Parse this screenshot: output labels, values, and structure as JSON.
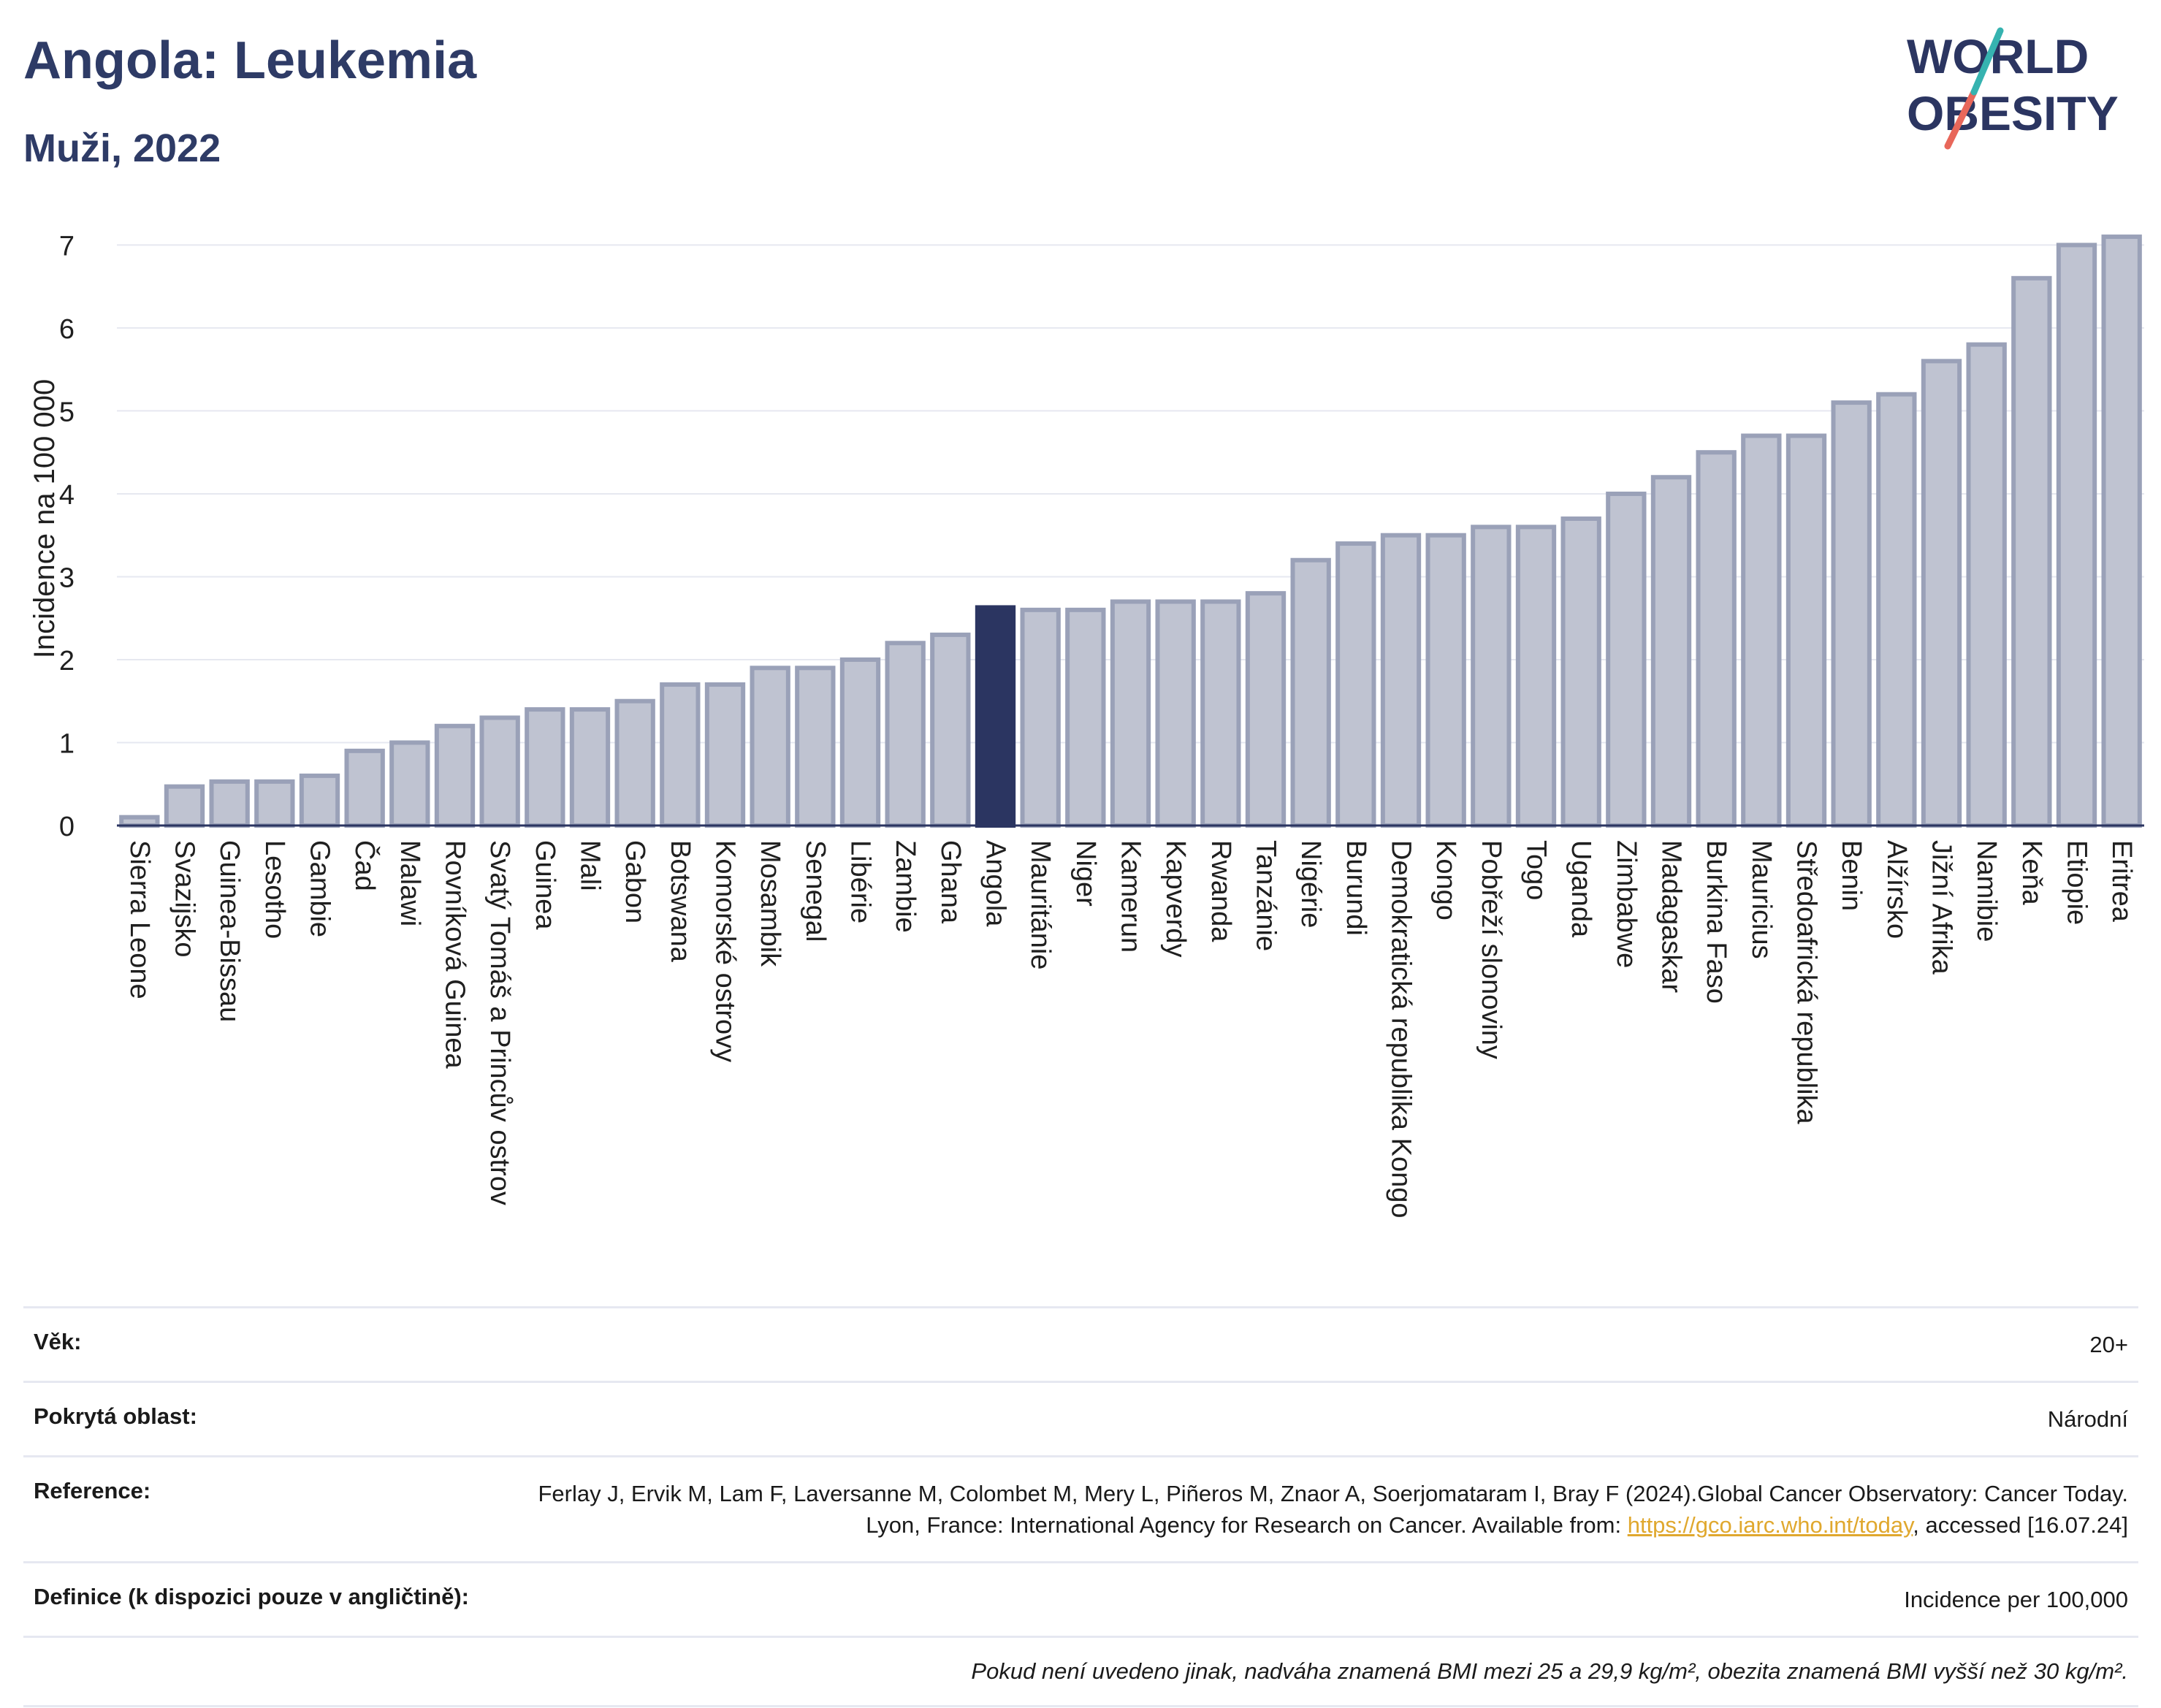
{
  "header": {
    "title": "Angola: Leukemia",
    "subtitle": "Muži, 2022"
  },
  "logo": {
    "line1": "WORLD",
    "line2": "OBESITY",
    "accent_colors": [
      "#36b3b0",
      "#e8675a"
    ]
  },
  "colors": {
    "highlight": "#2b3561",
    "bar_fill": "#bfc3d1",
    "bar_stroke": "#9aa1b8",
    "grid": "#e6e8f0"
  },
  "chart_data": {
    "type": "bar",
    "ylabel": "Incidence na 100 000",
    "xlabel": "",
    "ylim": [
      0,
      7.4
    ],
    "yticks": [
      0,
      1,
      2,
      3,
      4,
      5,
      6,
      7
    ],
    "grid": true,
    "highlight": "Angola",
    "categories": [
      "Sierra Leone",
      "Svazijsko",
      "Guinea-Bissau",
      "Lesotho",
      "Gambie",
      "Čad",
      "Malawi",
      "Rovníková Guinea",
      "Svatý Tomáš a Princův ostrov",
      "Guinea",
      "Mali",
      "Gabon",
      "Botswana",
      "Komorské ostrovy",
      "Mosambik",
      "Senegal",
      "Libérie",
      "Zambie",
      "Ghana",
      "Angola",
      "Mauritánie",
      "Niger",
      "Kamerun",
      "Kapverdy",
      "Rwanda",
      "Tanzánie",
      "Nigérie",
      "Burundi",
      "Demokratická republika Kongo",
      "Kongo",
      "Pobřeží slonoviny",
      "Togo",
      "Uganda",
      "Zimbabwe",
      "Madagaskar",
      "Burkina Faso",
      "Mauricius",
      "Středoafrická republika",
      "Benin",
      "Alžírsko",
      "Jižní Afrika",
      "Namibie",
      "Keňa",
      "Etiopie",
      "Eritrea"
    ],
    "values": [
      0.1,
      0.47,
      0.53,
      0.53,
      0.6,
      0.9,
      1.0,
      1.2,
      1.3,
      1.4,
      1.4,
      1.5,
      1.7,
      1.7,
      1.9,
      1.9,
      2.0,
      2.2,
      2.3,
      2.63,
      2.6,
      2.6,
      2.7,
      2.7,
      2.7,
      2.8,
      3.2,
      3.4,
      3.5,
      3.5,
      3.6,
      3.6,
      3.7,
      4.0,
      4.2,
      4.5,
      4.7,
      4.7,
      5.1,
      5.2,
      5.6,
      5.8,
      6.6,
      7.0,
      7.1
    ]
  },
  "meta": {
    "age_label": "Věk:",
    "age_value": "20+",
    "area_label": "Pokrytá oblast:",
    "area_value": "Národní",
    "reference_label": "Reference:",
    "reference_text_1": "Ferlay J, Ervik M, Lam F, Laversanne M, Colombet M, Mery L, Piñeros M, Znaor A, Soerjomataram I, Bray F (2024).Global Cancer Observatory: Cancer Today. Lyon, France: International Agency for Research on Cancer. Available from: ",
    "reference_link": "https://gco.iarc.who.int/today",
    "reference_text_2": ", accessed [16.07.24]",
    "definition_label": "Definice (k dispozici pouze v angličtině):",
    "definition_value": "Incidence per 100,000",
    "note": "Pokud není uvedeno jinak, nadváha znamená BMI mezi 25 a 29,9 kg/m², obezita znamená BMI vyšší než 30 kg/m²."
  }
}
